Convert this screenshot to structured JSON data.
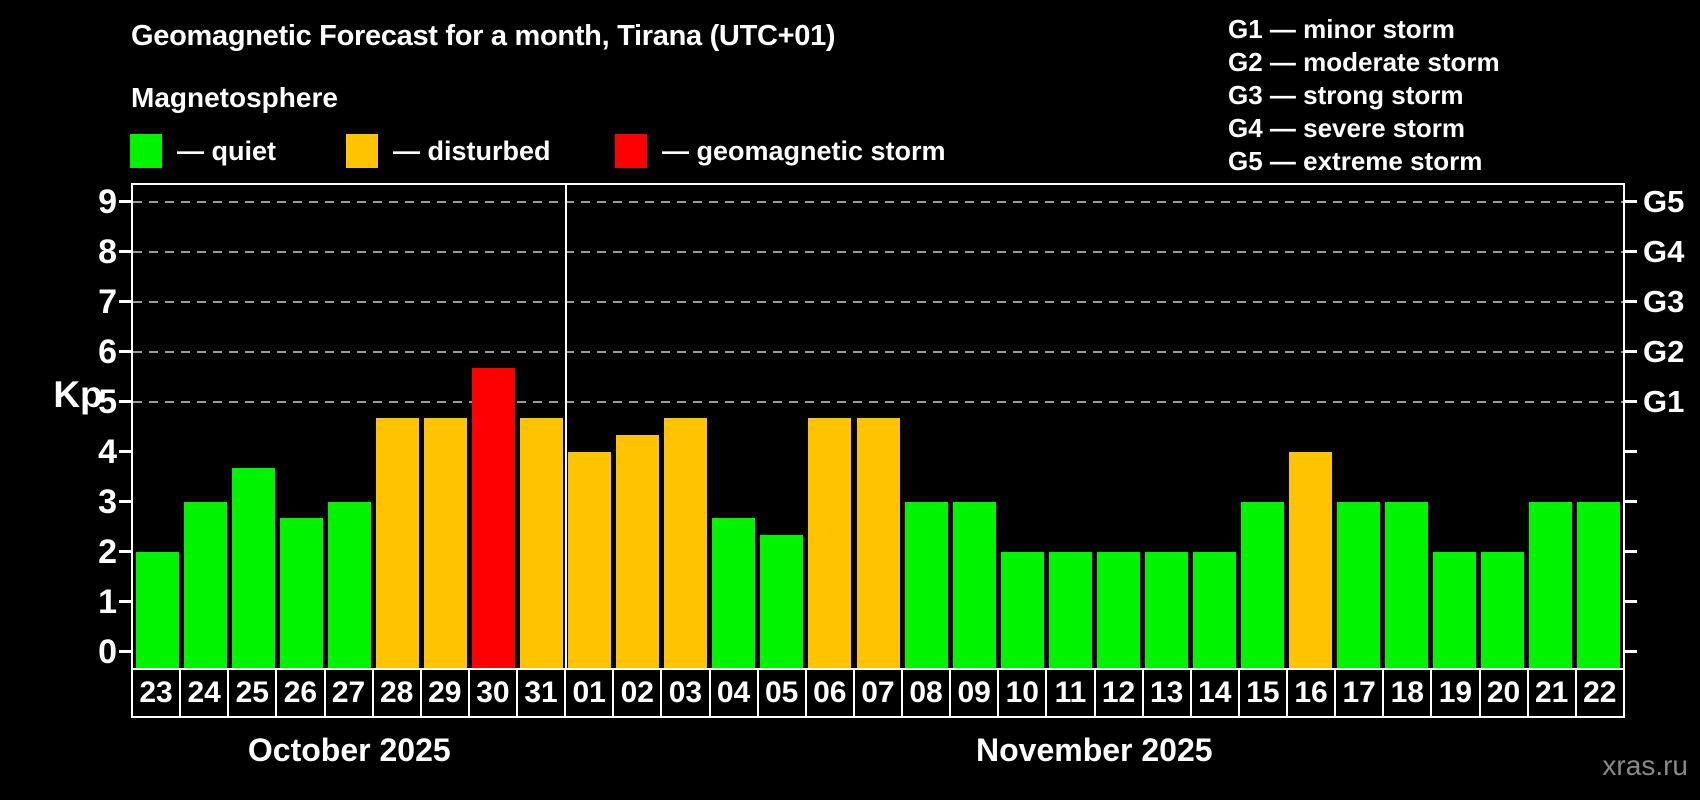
{
  "title": "Geomagnetic Forecast for a month, Tirana (UTC+01)",
  "subtitle": "Magnetosphere",
  "legend": {
    "items": [
      {
        "key": "quiet",
        "label": "— quiet",
        "color": "#00f400"
      },
      {
        "key": "disturbed",
        "label": "— disturbed",
        "color": "#ffc300"
      },
      {
        "key": "storm",
        "label": "— geomagnetic storm",
        "color": "#ff0000"
      }
    ]
  },
  "storm_scale_legend": [
    "G1 — minor storm",
    "G2 — moderate storm",
    "G3 — strong storm",
    "G4 — severe storm",
    "G5 — extreme storm"
  ],
  "watermark": "xras.ru",
  "chart_data": {
    "type": "bar",
    "title": "Geomagnetic Forecast for a month, Tirana (UTC+01)",
    "ylabel": "Kp",
    "ylim": [
      -0.33,
      9.37
    ],
    "y_ticks": [
      0,
      1,
      2,
      3,
      4,
      5,
      6,
      7,
      8,
      9
    ],
    "gridlines_kp": [
      5,
      6,
      7,
      8,
      9
    ],
    "grid": "dashed horizontal at G-storm levels",
    "legend_position": "top",
    "right_axis_labels": [
      {
        "kp": 5,
        "label": "G1"
      },
      {
        "kp": 6,
        "label": "G2"
      },
      {
        "kp": 7,
        "label": "G3"
      },
      {
        "kp": 8,
        "label": "G4"
      },
      {
        "kp": 9,
        "label": "G5"
      }
    ],
    "colors": {
      "quiet": "#00f400",
      "disturbed": "#ffc300",
      "storm": "#ff0000"
    },
    "months": [
      {
        "label": "October 2025",
        "days": 9
      },
      {
        "label": "November 2025",
        "days": 22
      }
    ],
    "categories": [
      "23",
      "24",
      "25",
      "26",
      "27",
      "28",
      "29",
      "30",
      "31",
      "01",
      "02",
      "03",
      "04",
      "05",
      "06",
      "07",
      "08",
      "09",
      "10",
      "11",
      "12",
      "13",
      "14",
      "15",
      "16",
      "17",
      "18",
      "19",
      "20",
      "21",
      "22"
    ],
    "days": [
      {
        "day": "23",
        "kp": 2.0,
        "status": "quiet"
      },
      {
        "day": "24",
        "kp": 3.0,
        "status": "quiet"
      },
      {
        "day": "25",
        "kp": 3.67,
        "status": "quiet"
      },
      {
        "day": "26",
        "kp": 2.67,
        "status": "quiet"
      },
      {
        "day": "27",
        "kp": 3.0,
        "status": "quiet"
      },
      {
        "day": "28",
        "kp": 4.67,
        "status": "disturbed"
      },
      {
        "day": "29",
        "kp": 4.67,
        "status": "disturbed"
      },
      {
        "day": "30",
        "kp": 5.67,
        "status": "storm"
      },
      {
        "day": "31",
        "kp": 4.67,
        "status": "disturbed"
      },
      {
        "day": "01",
        "kp": 4.0,
        "status": "disturbed"
      },
      {
        "day": "02",
        "kp": 4.33,
        "status": "disturbed"
      },
      {
        "day": "03",
        "kp": 4.67,
        "status": "disturbed"
      },
      {
        "day": "04",
        "kp": 2.67,
        "status": "quiet"
      },
      {
        "day": "05",
        "kp": 2.33,
        "status": "quiet"
      },
      {
        "day": "06",
        "kp": 4.67,
        "status": "disturbed"
      },
      {
        "day": "07",
        "kp": 4.67,
        "status": "disturbed"
      },
      {
        "day": "08",
        "kp": 3.0,
        "status": "quiet"
      },
      {
        "day": "09",
        "kp": 3.0,
        "status": "quiet"
      },
      {
        "day": "10",
        "kp": 2.0,
        "status": "quiet"
      },
      {
        "day": "11",
        "kp": 2.0,
        "status": "quiet"
      },
      {
        "day": "12",
        "kp": 2.0,
        "status": "quiet"
      },
      {
        "day": "13",
        "kp": 2.0,
        "status": "quiet"
      },
      {
        "day": "14",
        "kp": 2.0,
        "status": "quiet"
      },
      {
        "day": "15",
        "kp": 3.0,
        "status": "quiet"
      },
      {
        "day": "16",
        "kp": 4.0,
        "status": "disturbed"
      },
      {
        "day": "17",
        "kp": 3.0,
        "status": "quiet"
      },
      {
        "day": "18",
        "kp": 3.0,
        "status": "quiet"
      },
      {
        "day": "19",
        "kp": 2.0,
        "status": "quiet"
      },
      {
        "day": "20",
        "kp": 2.0,
        "status": "quiet"
      },
      {
        "day": "21",
        "kp": 3.0,
        "status": "quiet"
      },
      {
        "day": "22",
        "kp": 3.0,
        "status": "quiet"
      }
    ]
  }
}
